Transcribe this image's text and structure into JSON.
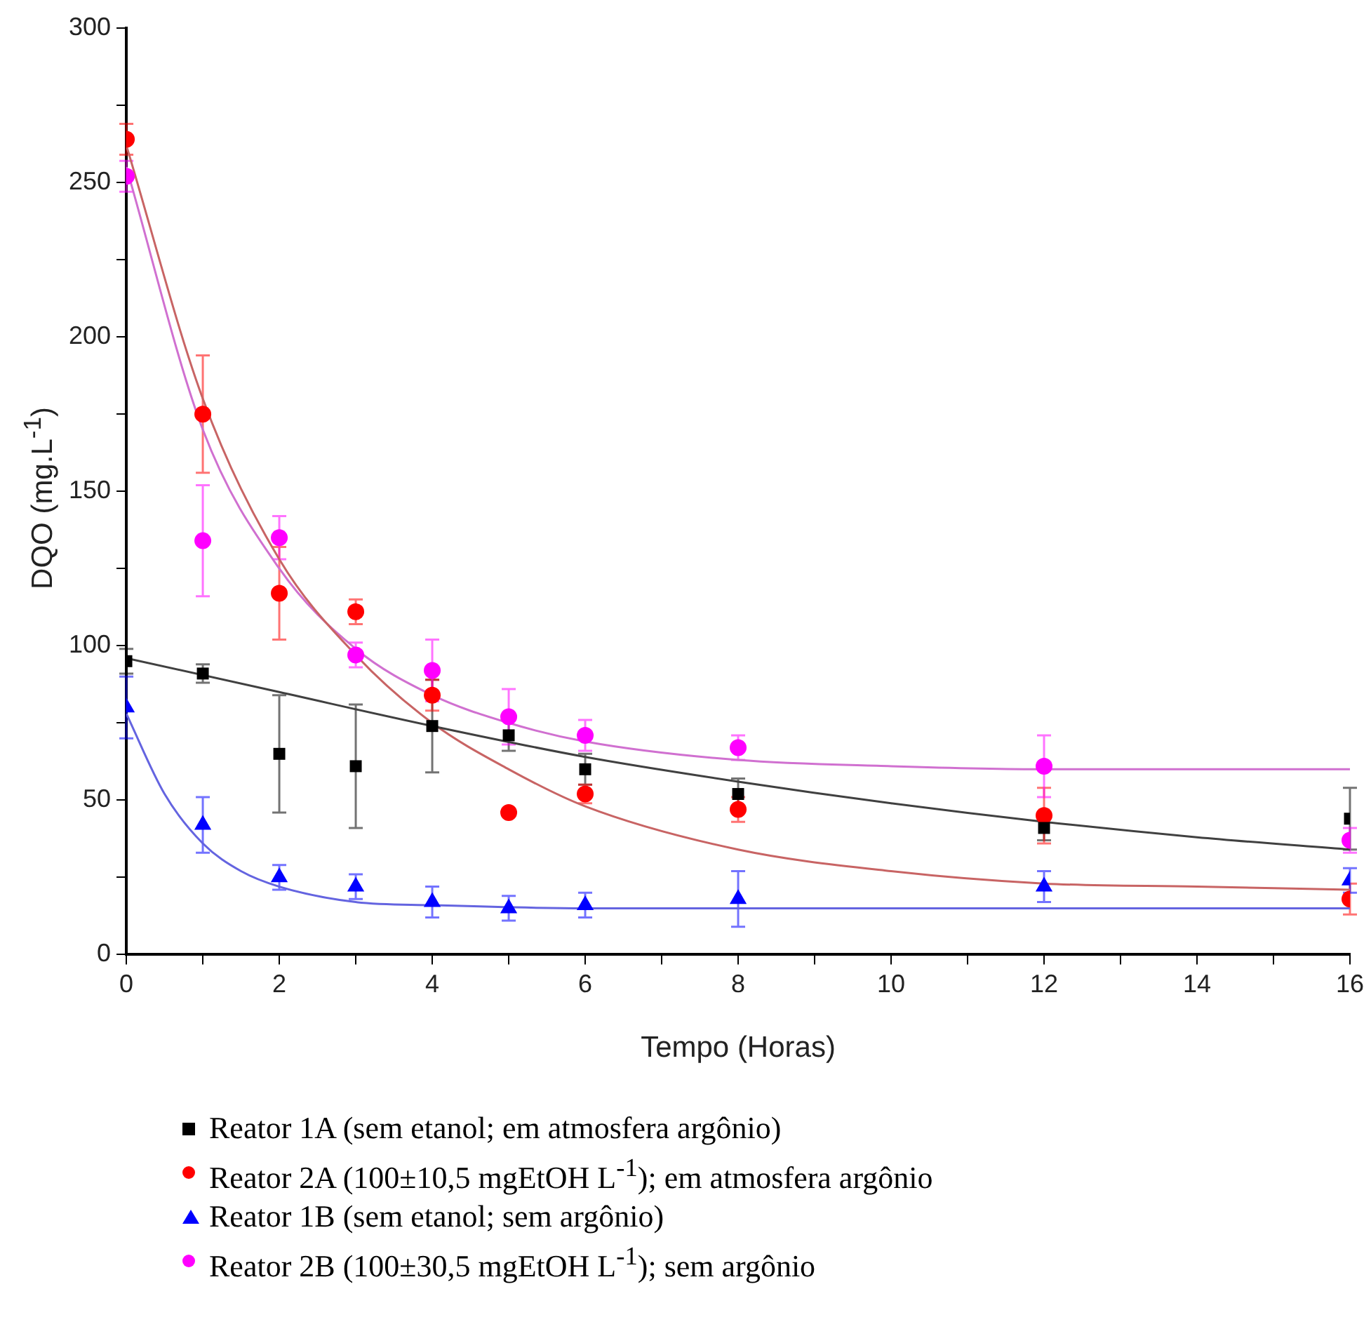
{
  "chart_data": {
    "type": "scatter",
    "xlabel": "Tempo (Horas)",
    "ylabel": "DQO (mg.L$^{-1}$)",
    "x": [
      0,
      1,
      2,
      3,
      4,
      5,
      6,
      8,
      12,
      16
    ],
    "xlim": [
      0,
      16
    ],
    "xticks": [
      0,
      {
        "value": 1,
        "label": null
      },
      2,
      {
        "value": 3,
        "label": null
      },
      4,
      {
        "value": 5,
        "label": null
      },
      6,
      {
        "value": 7,
        "label": null
      },
      8,
      {
        "value": 9,
        "label": null
      },
      10,
      {
        "value": 11,
        "label": null
      },
      12,
      {
        "value": 13,
        "label": null
      },
      14,
      {
        "value": 15,
        "label": null
      },
      16
    ],
    "ylim": [
      0,
      300
    ],
    "yticks": [
      0,
      {
        "value": 25,
        "label": null
      },
      50,
      {
        "value": 75,
        "label": null
      },
      100,
      {
        "value": 125,
        "label": null
      },
      150,
      {
        "value": 175,
        "label": null
      },
      200,
      {
        "value": 225,
        "label": null
      },
      250,
      {
        "value": 275,
        "label": null
      },
      300
    ],
    "grid": false,
    "legend": "bottom",
    "series": [
      {
        "name": "Reator 1A (sem etanol; em atmosfera argônio)",
        "marker": "square",
        "color": "#000000",
        "values": [
          95,
          91,
          65,
          61,
          74,
          71,
          60,
          52,
          41,
          44
        ],
        "errors": [
          4,
          3,
          19,
          20,
          15,
          5,
          5,
          5,
          4,
          10
        ]
      },
      {
        "name": "Reator 2A (100±10,5 mgEtOH L$^{-1}$); em atmosfera argônio",
        "marker": "circle",
        "color": "#ff0000",
        "values": [
          264,
          175,
          117,
          111,
          84,
          46,
          52,
          47,
          45,
          18
        ],
        "errors": [
          5,
          19,
          15,
          4,
          5,
          null,
          3,
          4,
          9,
          5
        ]
      },
      {
        "name": "Reator 1B (sem etanol; sem argônio)",
        "marker": "triangle",
        "color": "#0000ff",
        "values": [
          80,
          42,
          25,
          22,
          17,
          15,
          16,
          18,
          22,
          24
        ],
        "errors": [
          10,
          9,
          4,
          4,
          5,
          4,
          4,
          9,
          5,
          4
        ]
      },
      {
        "name": "Reator 2B (100±30,5 mgEtOH L$^{-1}$); sem argônio",
        "marker": "circle",
        "color": "#ff00ff",
        "values": [
          252,
          134,
          135,
          97,
          92,
          77,
          71,
          67,
          61,
          37
        ],
        "errors": [
          5,
          18,
          7,
          4,
          10,
          9,
          5,
          4,
          10,
          4
        ]
      },
      {
        "type": "line",
        "marker": "none",
        "color": "#404040",
        "x": [
          0,
          2,
          4,
          6,
          8,
          10,
          12,
          14,
          16
        ],
        "values": [
          96,
          85,
          74,
          64,
          56,
          49,
          43,
          38,
          34
        ]
      },
      {
        "type": "line",
        "marker": "none",
        "color": "#c86464",
        "x": [
          0,
          1,
          2,
          3,
          4,
          5,
          6,
          8,
          10,
          12,
          14,
          16
        ],
        "values": [
          262,
          180,
          128,
          97,
          75,
          60,
          48,
          34,
          27,
          23,
          22,
          21
        ]
      },
      {
        "type": "line",
        "marker": "none",
        "color": "#6464e0",
        "x": [
          0,
          0.5,
          1,
          1.5,
          2,
          3,
          4,
          6,
          16
        ],
        "values": [
          78,
          52,
          36,
          27,
          22,
          17,
          16,
          15,
          15
        ]
      },
      {
        "type": "line",
        "marker": "none",
        "color": "#d070d0",
        "x": [
          0,
          1,
          2,
          3,
          4,
          5,
          6,
          8,
          10,
          12,
          16
        ],
        "values": [
          255,
          170,
          125,
          99,
          84,
          75,
          69,
          63,
          61,
          60,
          60
        ]
      }
    ]
  }
}
